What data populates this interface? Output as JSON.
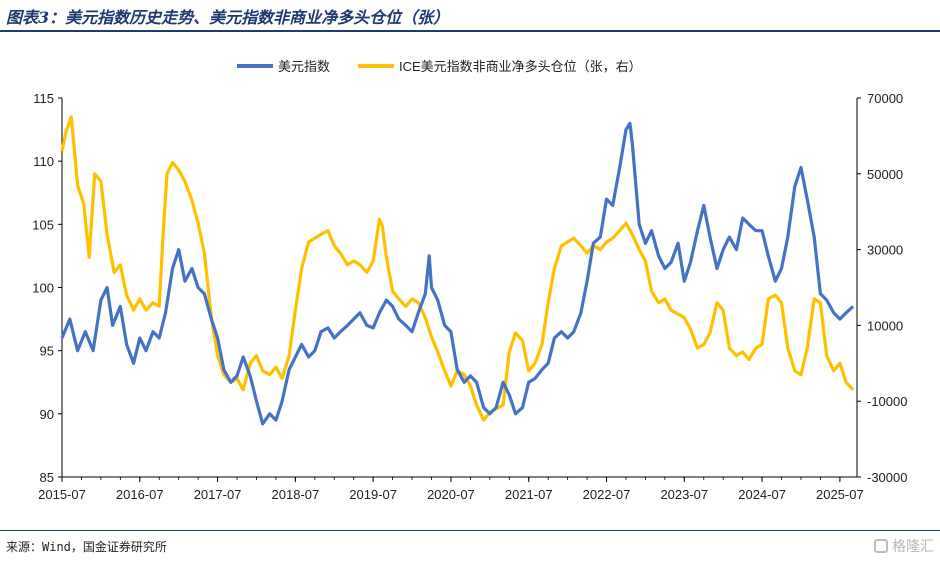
{
  "title": "图表3：美元指数历史走势、美元指数非商业净多头仓位（张）",
  "source": "来源：Wind，国金证券研究所",
  "watermark": "格隆汇",
  "colors": {
    "usd_index": "#4472c4",
    "ice_position": "#ffc000",
    "title": "#1f3a6e"
  },
  "chart_data": {
    "type": "line",
    "title": "图表3：美元指数历史走势、美元指数非商业净多头仓位（张）",
    "legend_position": "top",
    "grid": false,
    "x_ticks": [
      "2015-07",
      "2016-07",
      "2017-07",
      "2018-07",
      "2019-07",
      "2020-07",
      "2021-07",
      "2022-07",
      "2023-07",
      "2024-07",
      "2025-07"
    ],
    "y_left": {
      "ticks": [
        "115",
        "110",
        "105",
        "100",
        "95",
        "90",
        "85"
      ],
      "ylim": [
        85,
        115
      ]
    },
    "y_right": {
      "ticks": [
        "70000",
        "50000",
        "30000",
        "10000",
        "-10000",
        "-30000"
      ],
      "ylim": [
        -30000,
        70000
      ]
    },
    "series": [
      {
        "name": "美元指数",
        "axis": "left",
        "color": "#4472c4",
        "points": [
          [
            2015.5,
            96.0
          ],
          [
            2015.6,
            97.5
          ],
          [
            2015.7,
            95.0
          ],
          [
            2015.8,
            96.5
          ],
          [
            2015.9,
            95.0
          ],
          [
            2016.0,
            99.0
          ],
          [
            2016.08,
            100.0
          ],
          [
            2016.15,
            97.0
          ],
          [
            2016.25,
            98.5
          ],
          [
            2016.33,
            95.5
          ],
          [
            2016.42,
            94.0
          ],
          [
            2016.5,
            96.0
          ],
          [
            2016.58,
            95.0
          ],
          [
            2016.67,
            96.5
          ],
          [
            2016.75,
            96.0
          ],
          [
            2016.83,
            98.0
          ],
          [
            2016.92,
            101.5
          ],
          [
            2017.0,
            103.0
          ],
          [
            2017.08,
            100.5
          ],
          [
            2017.17,
            101.5
          ],
          [
            2017.25,
            100.0
          ],
          [
            2017.33,
            99.5
          ],
          [
            2017.42,
            97.5
          ],
          [
            2017.5,
            96.0
          ],
          [
            2017.58,
            93.5
          ],
          [
            2017.67,
            92.5
          ],
          [
            2017.75,
            93.0
          ],
          [
            2017.83,
            94.5
          ],
          [
            2017.92,
            93.0
          ],
          [
            2018.0,
            91.0
          ],
          [
            2018.08,
            89.2
          ],
          [
            2018.17,
            90.0
          ],
          [
            2018.25,
            89.5
          ],
          [
            2018.33,
            91.0
          ],
          [
            2018.42,
            93.5
          ],
          [
            2018.5,
            94.5
          ],
          [
            2018.58,
            95.5
          ],
          [
            2018.67,
            94.5
          ],
          [
            2018.75,
            95.0
          ],
          [
            2018.83,
            96.5
          ],
          [
            2018.92,
            96.8
          ],
          [
            2019.0,
            96.0
          ],
          [
            2019.08,
            96.5
          ],
          [
            2019.17,
            97.0
          ],
          [
            2019.25,
            97.5
          ],
          [
            2019.33,
            98.0
          ],
          [
            2019.42,
            97.0
          ],
          [
            2019.5,
            96.8
          ],
          [
            2019.58,
            98.0
          ],
          [
            2019.67,
            99.0
          ],
          [
            2019.75,
            98.5
          ],
          [
            2019.83,
            97.5
          ],
          [
            2019.92,
            97.0
          ],
          [
            2020.0,
            96.5
          ],
          [
            2020.08,
            98.0
          ],
          [
            2020.17,
            99.5
          ],
          [
            2020.22,
            102.5
          ],
          [
            2020.25,
            100.0
          ],
          [
            2020.33,
            99.0
          ],
          [
            2020.42,
            97.0
          ],
          [
            2020.5,
            96.5
          ],
          [
            2020.58,
            93.5
          ],
          [
            2020.67,
            92.5
          ],
          [
            2020.75,
            93.0
          ],
          [
            2020.83,
            92.5
          ],
          [
            2020.92,
            90.5
          ],
          [
            2021.0,
            90.0
          ],
          [
            2021.08,
            90.5
          ],
          [
            2021.17,
            92.5
          ],
          [
            2021.25,
            91.5
          ],
          [
            2021.33,
            90.0
          ],
          [
            2021.42,
            90.5
          ],
          [
            2021.5,
            92.5
          ],
          [
            2021.58,
            92.8
          ],
          [
            2021.67,
            93.5
          ],
          [
            2021.75,
            94.0
          ],
          [
            2021.83,
            96.0
          ],
          [
            2021.92,
            96.5
          ],
          [
            2022.0,
            96.0
          ],
          [
            2022.08,
            96.5
          ],
          [
            2022.17,
            98.0
          ],
          [
            2022.25,
            100.5
          ],
          [
            2022.33,
            103.5
          ],
          [
            2022.42,
            104.0
          ],
          [
            2022.5,
            107.0
          ],
          [
            2022.58,
            106.5
          ],
          [
            2022.67,
            109.5
          ],
          [
            2022.75,
            112.5
          ],
          [
            2022.8,
            113.0
          ],
          [
            2022.83,
            111.5
          ],
          [
            2022.92,
            105.0
          ],
          [
            2023.0,
            103.5
          ],
          [
            2023.08,
            104.5
          ],
          [
            2023.17,
            102.5
          ],
          [
            2023.25,
            101.5
          ],
          [
            2023.33,
            102.0
          ],
          [
            2023.42,
            103.5
          ],
          [
            2023.5,
            100.5
          ],
          [
            2023.58,
            102.0
          ],
          [
            2023.67,
            104.5
          ],
          [
            2023.75,
            106.5
          ],
          [
            2023.83,
            104.0
          ],
          [
            2023.92,
            101.5
          ],
          [
            2024.0,
            103.0
          ],
          [
            2024.08,
            104.0
          ],
          [
            2024.17,
            103.0
          ],
          [
            2024.25,
            105.5
          ],
          [
            2024.33,
            105.0
          ],
          [
            2024.42,
            104.5
          ],
          [
            2024.5,
            104.5
          ],
          [
            2024.58,
            102.5
          ],
          [
            2024.67,
            100.5
          ],
          [
            2024.75,
            101.5
          ],
          [
            2024.83,
            104.0
          ],
          [
            2024.92,
            108.0
          ],
          [
            2025.0,
            109.5
          ],
          [
            2025.08,
            107.0
          ],
          [
            2025.17,
            104.0
          ],
          [
            2025.25,
            99.5
          ],
          [
            2025.33,
            99.0
          ],
          [
            2025.42,
            98.0
          ],
          [
            2025.5,
            97.5
          ],
          [
            2025.58,
            98.0
          ],
          [
            2025.67,
            98.5
          ]
        ]
      },
      {
        "name": "ICE美元指数非商业净多头仓位（张，右）",
        "axis": "right",
        "color": "#ffc000",
        "points": [
          [
            2015.5,
            56000
          ],
          [
            2015.55,
            61000
          ],
          [
            2015.62,
            65000
          ],
          [
            2015.7,
            47000
          ],
          [
            2015.78,
            42000
          ],
          [
            2015.85,
            28000
          ],
          [
            2015.92,
            50000
          ],
          [
            2016.0,
            48000
          ],
          [
            2016.08,
            34000
          ],
          [
            2016.17,
            24000
          ],
          [
            2016.25,
            26000
          ],
          [
            2016.33,
            18000
          ],
          [
            2016.42,
            14000
          ],
          [
            2016.5,
            17000
          ],
          [
            2016.58,
            14000
          ],
          [
            2016.67,
            16000
          ],
          [
            2016.75,
            15000
          ],
          [
            2016.8,
            34000
          ],
          [
            2016.85,
            50000
          ],
          [
            2016.92,
            53000
          ],
          [
            2017.0,
            51000
          ],
          [
            2017.08,
            48000
          ],
          [
            2017.17,
            43000
          ],
          [
            2017.25,
            37000
          ],
          [
            2017.33,
            29000
          ],
          [
            2017.42,
            12000
          ],
          [
            2017.5,
            2000
          ],
          [
            2017.58,
            -3000
          ],
          [
            2017.67,
            -5000
          ],
          [
            2017.75,
            -4000
          ],
          [
            2017.83,
            -7000
          ],
          [
            2017.92,
            0
          ],
          [
            2018.0,
            2000
          ],
          [
            2018.08,
            -2000
          ],
          [
            2018.17,
            -3000
          ],
          [
            2018.25,
            -1000
          ],
          [
            2018.33,
            -4000
          ],
          [
            2018.42,
            2000
          ],
          [
            2018.5,
            14000
          ],
          [
            2018.58,
            25000
          ],
          [
            2018.67,
            32000
          ],
          [
            2018.75,
            33000
          ],
          [
            2018.83,
            34000
          ],
          [
            2018.92,
            35000
          ],
          [
            2019.0,
            31000
          ],
          [
            2019.08,
            29000
          ],
          [
            2019.17,
            26000
          ],
          [
            2019.25,
            27000
          ],
          [
            2019.33,
            26000
          ],
          [
            2019.42,
            24000
          ],
          [
            2019.5,
            27000
          ],
          [
            2019.58,
            38000
          ],
          [
            2019.62,
            36000
          ],
          [
            2019.67,
            28000
          ],
          [
            2019.75,
            19000
          ],
          [
            2019.83,
            17000
          ],
          [
            2019.92,
            15000
          ],
          [
            2020.0,
            17000
          ],
          [
            2020.08,
            16000
          ],
          [
            2020.17,
            12000
          ],
          [
            2020.25,
            7000
          ],
          [
            2020.33,
            3000
          ],
          [
            2020.42,
            -2000
          ],
          [
            2020.5,
            -6000
          ],
          [
            2020.58,
            -2000
          ],
          [
            2020.67,
            -3000
          ],
          [
            2020.75,
            -6000
          ],
          [
            2020.83,
            -11000
          ],
          [
            2020.92,
            -15000
          ],
          [
            2021.0,
            -13000
          ],
          [
            2021.08,
            -12000
          ],
          [
            2021.17,
            -11000
          ],
          [
            2021.25,
            3000
          ],
          [
            2021.33,
            8000
          ],
          [
            2021.42,
            6000
          ],
          [
            2021.5,
            -2000
          ],
          [
            2021.58,
            0
          ],
          [
            2021.67,
            5000
          ],
          [
            2021.75,
            16000
          ],
          [
            2021.83,
            25000
          ],
          [
            2021.92,
            31000
          ],
          [
            2022.0,
            32000
          ],
          [
            2022.08,
            33000
          ],
          [
            2022.17,
            31000
          ],
          [
            2022.25,
            29000
          ],
          [
            2022.33,
            31000
          ],
          [
            2022.42,
            30000
          ],
          [
            2022.5,
            32000
          ],
          [
            2022.58,
            33000
          ],
          [
            2022.67,
            35000
          ],
          [
            2022.75,
            37000
          ],
          [
            2022.83,
            34000
          ],
          [
            2022.92,
            30000
          ],
          [
            2023.0,
            27000
          ],
          [
            2023.08,
            19000
          ],
          [
            2023.17,
            16000
          ],
          [
            2023.25,
            17000
          ],
          [
            2023.33,
            14000
          ],
          [
            2023.42,
            13000
          ],
          [
            2023.5,
            12000
          ],
          [
            2023.58,
            9000
          ],
          [
            2023.67,
            4000
          ],
          [
            2023.75,
            5000
          ],
          [
            2023.83,
            8000
          ],
          [
            2023.92,
            16000
          ],
          [
            2024.0,
            14000
          ],
          [
            2024.08,
            4000
          ],
          [
            2024.17,
            2000
          ],
          [
            2024.25,
            3000
          ],
          [
            2024.33,
            1000
          ],
          [
            2024.42,
            4000
          ],
          [
            2024.5,
            5000
          ],
          [
            2024.58,
            17000
          ],
          [
            2024.67,
            18000
          ],
          [
            2024.75,
            16000
          ],
          [
            2024.83,
            4000
          ],
          [
            2024.92,
            -2000
          ],
          [
            2025.0,
            -3000
          ],
          [
            2025.08,
            4000
          ],
          [
            2025.17,
            17000
          ],
          [
            2025.25,
            16000
          ],
          [
            2025.33,
            2000
          ],
          [
            2025.42,
            -2000
          ],
          [
            2025.5,
            0
          ],
          [
            2025.58,
            -5000
          ],
          [
            2025.67,
            -7000
          ]
        ]
      }
    ]
  }
}
